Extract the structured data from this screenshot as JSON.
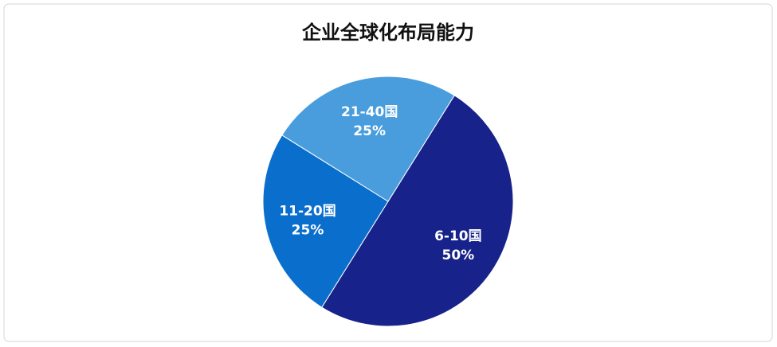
{
  "chart_data": {
    "type": "pie",
    "title": "企业全球化布局能力",
    "categories": [
      "6-10国",
      "11-20国",
      "21-40国"
    ],
    "values": [
      50,
      25,
      25
    ],
    "value_labels": [
      "50%",
      "25%",
      "25%"
    ],
    "colors": [
      "#17228a",
      "#0a6fcc",
      "#4a9ddd"
    ]
  }
}
